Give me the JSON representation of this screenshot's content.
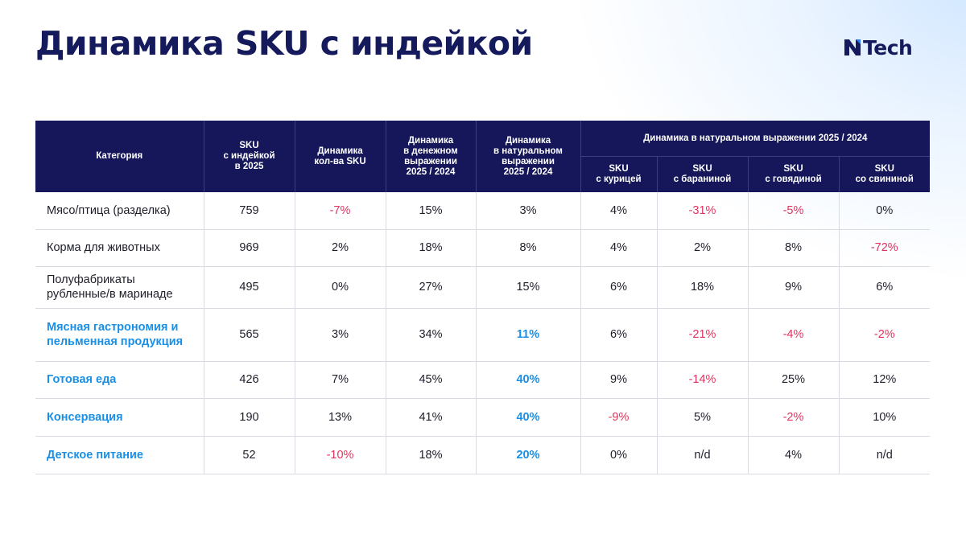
{
  "title": "Динамика SKU с индейкой",
  "logo": {
    "text": "Tech",
    "mark_icon": "n-logo-mark"
  },
  "colors": {
    "header_bg": "#15175a",
    "title": "#151a5c",
    "negative": "#e0335e",
    "highlight": "#1a8fe6"
  },
  "table": {
    "headers": {
      "category": "Категория",
      "sku_2025": [
        "SKU",
        "с индейкой",
        "в 2025"
      ],
      "sku_count_dyn": [
        "Динамика",
        "кол-ва SKU"
      ],
      "money_dyn": [
        "Динамика",
        "в денежном",
        "выражении",
        "2025 / 2024"
      ],
      "natural_dyn": [
        "Динамика",
        "в натуральном",
        "выражении",
        "2025 / 2024"
      ],
      "group": "Динамика в натуральном выражении 2025 / 2024",
      "chicken": [
        "SKU",
        "с курицей"
      ],
      "lamb": [
        "SKU",
        "с бараниной"
      ],
      "beef": [
        "SKU",
        "с говядиной"
      ],
      "pork": [
        "SKU",
        "со свининой"
      ]
    },
    "rows": [
      {
        "category": "Мясо/птица (разделка)",
        "highlight": false,
        "cells": [
          "759",
          "-7%",
          "15%",
          "3%",
          "4%",
          "-31%",
          "-5%",
          "0%"
        ]
      },
      {
        "category": "Корма для животных",
        "highlight": false,
        "cells": [
          "969",
          "2%",
          "18%",
          "8%",
          "4%",
          "2%",
          "8%",
          "-72%"
        ]
      },
      {
        "category": "Полуфабрикаты рубленные/в маринаде",
        "highlight": false,
        "cells": [
          "495",
          "0%",
          "27%",
          "15%",
          "6%",
          "18%",
          "9%",
          "6%"
        ]
      },
      {
        "category": "Мясная гастрономия и пельменная продукция",
        "highlight": true,
        "cells": [
          "565",
          "3%",
          "34%",
          "11%",
          "6%",
          "-21%",
          "-4%",
          "-2%"
        ]
      },
      {
        "category": "Готовая еда",
        "highlight": true,
        "cells": [
          "426",
          "7%",
          "45%",
          "40%",
          "9%",
          "-14%",
          "25%",
          "12%"
        ]
      },
      {
        "category": "Консервация",
        "highlight": true,
        "cells": [
          "190",
          "13%",
          "41%",
          "40%",
          "-9%",
          "5%",
          "-2%",
          "10%"
        ]
      },
      {
        "category": "Детское питание",
        "highlight": true,
        "cells": [
          "52",
          "-10%",
          "18%",
          "20%",
          "0%",
          "n/d",
          "4%",
          "n/d"
        ]
      }
    ]
  }
}
